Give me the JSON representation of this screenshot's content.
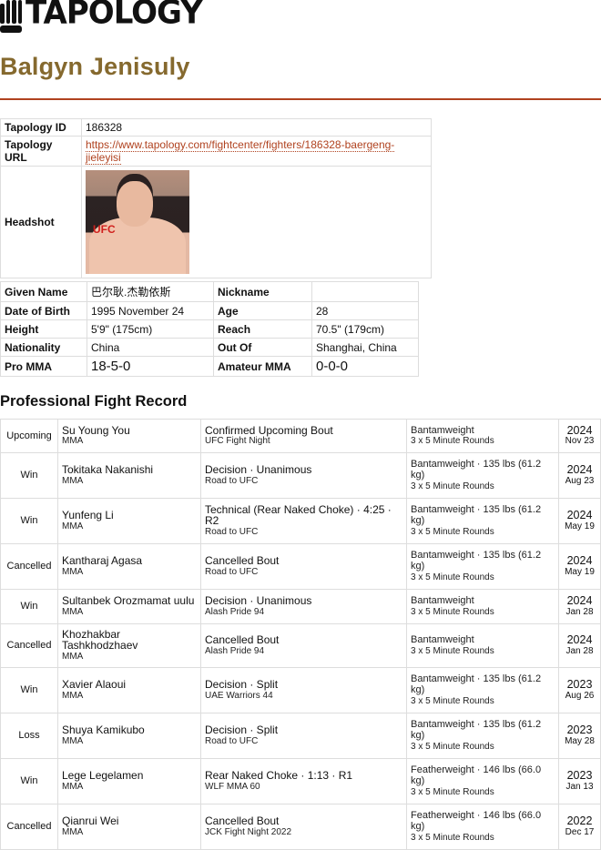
{
  "brand": {
    "name": "TAPOLOGY"
  },
  "fighter": {
    "name": "Balgyn Jenisuly"
  },
  "info": {
    "id_label": "Tapology ID",
    "id": "186328",
    "url_label": "Tapology URL",
    "url": "https://www.tapology.com/fightcenter/fighters/186328-baergeng-jieleyisi",
    "headshot_label": "Headshot"
  },
  "details": {
    "given_name_label": "Given Name",
    "given_name": "巴尔耿.杰勒依斯",
    "nickname_label": "Nickname",
    "nickname": "",
    "dob_label": "Date of Birth",
    "dob": "1995 November 24",
    "age_label": "Age",
    "age": "28",
    "height_label": "Height",
    "height": "5'9\" (175cm)",
    "reach_label": "Reach",
    "reach": "70.5\" (179cm)",
    "nationality_label": "Nationality",
    "nationality": "China",
    "out_of_label": "Out Of",
    "out_of": "Shanghai, China",
    "pro_label": "Pro MMA",
    "pro": "18-5-0",
    "amateur_label": "Amateur MMA",
    "amateur": "0-0-0"
  },
  "record": {
    "title": "Professional Fight Record",
    "fights": [
      {
        "result": "Upcoming",
        "opponent": "Su Young You",
        "sport": "MMA",
        "method": "Confirmed Upcoming Bout",
        "event": "UFC Fight Night",
        "weight": "Bantamweight",
        "rounds": "3 x 5 Minute Rounds",
        "year": "2024",
        "date": "Nov 23"
      },
      {
        "result": "Win",
        "opponent": "Tokitaka Nakanishi",
        "sport": "MMA",
        "method": "Decision · Unanimous",
        "event": "Road to UFC",
        "weight": "Bantamweight · 135 lbs (61.2 kg)",
        "rounds": "3 x 5 Minute Rounds",
        "year": "2024",
        "date": "Aug 23"
      },
      {
        "result": "Win",
        "opponent": "Yunfeng Li",
        "sport": "MMA",
        "method": "Technical (Rear Naked Choke) · 4:25 · R2",
        "event": "Road to UFC",
        "weight": "Bantamweight · 135 lbs (61.2 kg)",
        "rounds": "3 x 5 Minute Rounds",
        "year": "2024",
        "date": "May 19"
      },
      {
        "result": "Cancelled",
        "opponent": "Kantharaj Agasa",
        "sport": "MMA",
        "method": "Cancelled Bout",
        "event": "Road to UFC",
        "weight": "Bantamweight · 135 lbs (61.2 kg)",
        "rounds": "3 x 5 Minute Rounds",
        "year": "2024",
        "date": "May 19"
      },
      {
        "result": "Win",
        "opponent": "Sultanbek Orozmamat uulu",
        "sport": "MMA",
        "method": "Decision · Unanimous",
        "event": "Alash Pride 94",
        "weight": "Bantamweight",
        "rounds": "3 x 5 Minute Rounds",
        "year": "2024",
        "date": "Jan 28"
      },
      {
        "result": "Cancelled",
        "opponent": "Khozhakbar Tashkhodzhaev",
        "sport": "MMA",
        "method": "Cancelled Bout",
        "event": "Alash Pride 94",
        "weight": "Bantamweight",
        "rounds": "3 x 5 Minute Rounds",
        "year": "2024",
        "date": "Jan 28"
      },
      {
        "result": "Win",
        "opponent": "Xavier Alaoui",
        "sport": "MMA",
        "method": "Decision · Split",
        "event": "UAE Warriors 44",
        "weight": "Bantamweight · 135 lbs (61.2 kg)",
        "rounds": "3 x 5 Minute Rounds",
        "year": "2023",
        "date": "Aug 26"
      },
      {
        "result": "Loss",
        "opponent": "Shuya Kamikubo",
        "sport": "MMA",
        "method": "Decision · Split",
        "event": "Road to UFC",
        "weight": "Bantamweight · 135 lbs (61.2 kg)",
        "rounds": "3 x 5 Minute Rounds",
        "year": "2023",
        "date": "May 28"
      },
      {
        "result": "Win",
        "opponent": "Lege Legelamen",
        "sport": "MMA",
        "method": "Rear Naked Choke · 1:13 · R1",
        "event": "WLF MMA 60",
        "weight": "Featherweight · 146 lbs (66.0 kg)",
        "rounds": "3 x 5 Minute Rounds",
        "year": "2023",
        "date": "Jan 13"
      },
      {
        "result": "Cancelled",
        "opponent": "Qianrui Wei",
        "sport": "MMA",
        "method": "Cancelled Bout",
        "event": "JCK Fight Night 2022",
        "weight": "Featherweight · 146 lbs (66.0 kg)",
        "rounds": "3 x 5 Minute Rounds",
        "year": "2022",
        "date": "Dec 17"
      }
    ]
  },
  "colors": {
    "title": "#85692e",
    "accent": "#b0421f",
    "border": "#dddddd"
  }
}
